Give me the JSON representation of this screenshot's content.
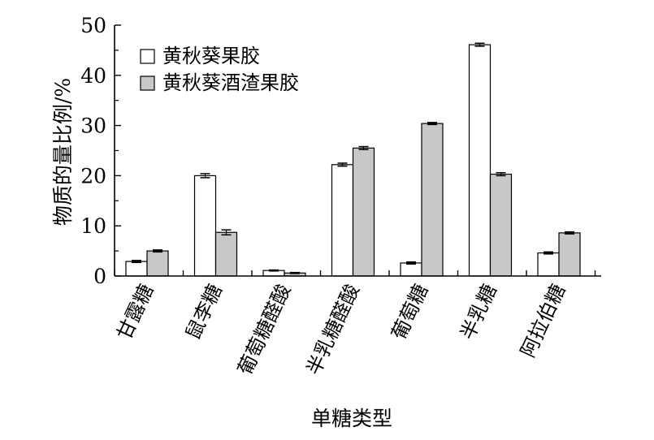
{
  "chart_data": {
    "type": "bar",
    "xlabel": "单糖类型",
    "ylabel": "物质的量比例/%",
    "ylim": [
      0,
      50
    ],
    "yticks": [
      0,
      10,
      20,
      30,
      40,
      50
    ],
    "legend_position": "top-left",
    "grid": false,
    "categories": [
      "甘露糖",
      "鼠李糖",
      "葡萄糖醛酸",
      "半乳糖醛酸",
      "葡萄糖",
      "半乳糖",
      "阿拉伯糖"
    ],
    "series": [
      {
        "name": "黄秋葵果胶",
        "color": "#ffffff",
        "values": [
          2.9,
          20.0,
          1.1,
          22.2,
          2.6,
          46.1,
          4.6
        ],
        "errors": [
          0.2,
          0.4,
          0.1,
          0.3,
          0.2,
          0.3,
          0.2
        ]
      },
      {
        "name": "黄秋葵酒渣果胶",
        "color": "#c8c8c8",
        "values": [
          5.0,
          8.7,
          0.6,
          25.5,
          30.4,
          20.3,
          8.6
        ],
        "errors": [
          0.2,
          0.5,
          0.1,
          0.3,
          0.2,
          0.3,
          0.2
        ]
      }
    ]
  }
}
